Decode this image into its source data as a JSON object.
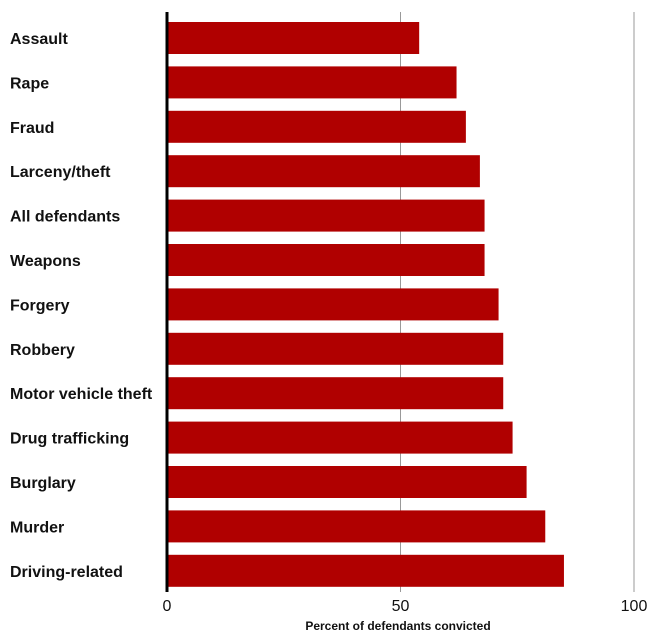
{
  "chart_data": {
    "type": "bar",
    "orientation": "horizontal",
    "categories": [
      "Assault",
      "Rape",
      "Fraud",
      "Larceny/theft",
      "All defendants",
      "Weapons",
      "Forgery",
      "Robbery",
      "Motor vehicle theft",
      "Drug trafficking",
      "Burglary",
      "Murder",
      "Driving-related"
    ],
    "values": [
      54,
      62,
      64,
      67,
      68,
      68,
      71,
      72,
      72,
      74,
      77,
      81,
      85
    ],
    "xlabel": "Percent of defendants convicted",
    "ylabel": "",
    "xlim": [
      0,
      100
    ],
    "xticks": [
      0,
      50,
      100
    ],
    "grid": "vertical gridlines at ticks",
    "legend": "none",
    "colors": {
      "bar": "#b00000",
      "axis": "#000000",
      "grid": "#999999"
    }
  }
}
